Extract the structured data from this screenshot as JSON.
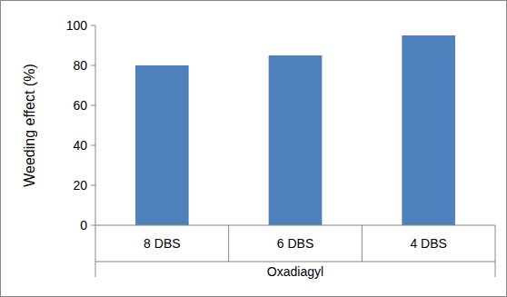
{
  "chart_data": {
    "type": "bar",
    "x_label": "Oxadiagyl",
    "y_label": "Weeding effect (%)",
    "categories": [
      "8 DBS",
      "6 DBS",
      "4 DBS"
    ],
    "values": [
      80,
      85,
      95
    ],
    "color": "#4f81bd",
    "ylim": [
      0,
      100
    ],
    "yticks": [
      0,
      20,
      40,
      60,
      80,
      100
    ],
    "grid": false
  }
}
